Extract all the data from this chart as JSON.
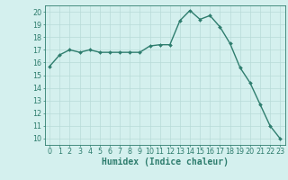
{
  "x": [
    0,
    1,
    2,
    3,
    4,
    5,
    6,
    7,
    8,
    9,
    10,
    11,
    12,
    13,
    14,
    15,
    16,
    17,
    18,
    19,
    20,
    21,
    22,
    23
  ],
  "y": [
    15.7,
    16.6,
    17.0,
    16.8,
    17.0,
    16.8,
    16.8,
    16.8,
    16.8,
    16.8,
    17.3,
    17.4,
    17.4,
    19.3,
    20.1,
    19.4,
    19.7,
    18.8,
    17.5,
    15.6,
    14.4,
    12.7,
    11.0,
    10.0
  ],
  "line_color": "#2e7d6e",
  "marker": "D",
  "marker_size": 2.0,
  "linewidth": 1.0,
  "xlabel": "Humidex (Indice chaleur)",
  "xlim": [
    -0.5,
    23.5
  ],
  "ylim": [
    9.5,
    20.5
  ],
  "yticks": [
    10,
    11,
    12,
    13,
    14,
    15,
    16,
    17,
    18,
    19,
    20
  ],
  "xticks": [
    0,
    1,
    2,
    3,
    4,
    5,
    6,
    7,
    8,
    9,
    10,
    11,
    12,
    13,
    14,
    15,
    16,
    17,
    18,
    19,
    20,
    21,
    22,
    23
  ],
  "bg_color": "#d4f0ee",
  "grid_color": "#b8dbd8",
  "text_color": "#2e7d6e",
  "tick_label_fontsize": 5.8,
  "xlabel_fontsize": 7.0
}
